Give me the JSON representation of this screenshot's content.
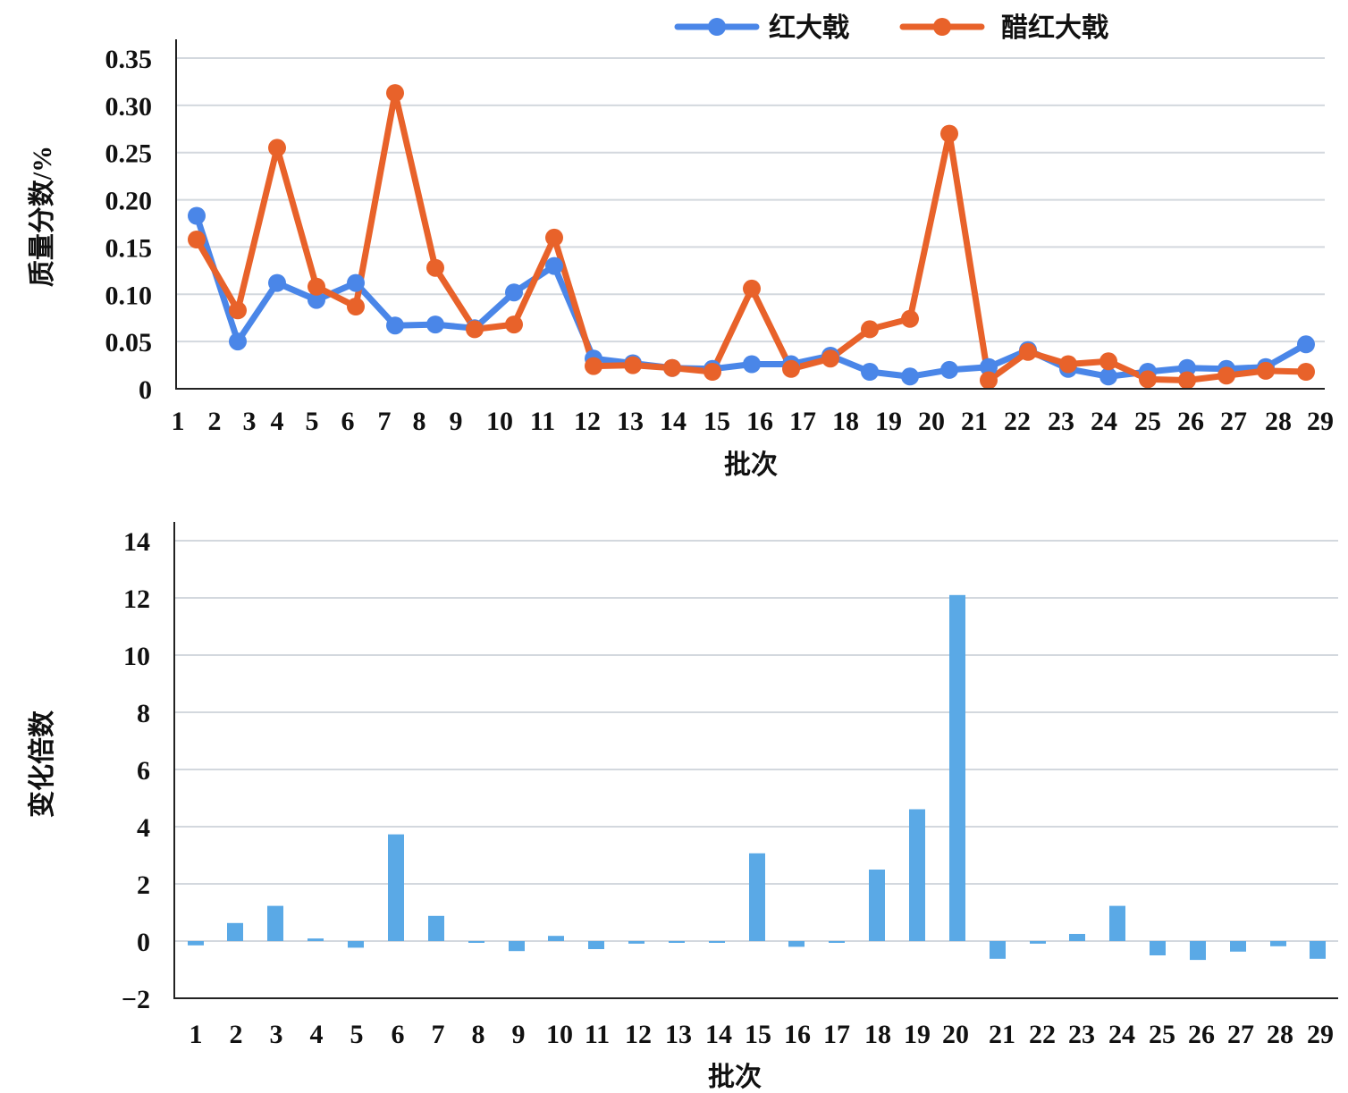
{
  "colors": {
    "red_jujube": "#4a86e8",
    "vinegar_red_jujube": "#e8622a",
    "fold_change_bar": "#5aa9e6",
    "grid": "#d3d8de",
    "axis": "#222222"
  },
  "chart_data": [
    {
      "type": "line",
      "title": "",
      "xlabel": "批次",
      "ylabel": "质量分数/%",
      "ylim": [
        0,
        0.35
      ],
      "yticks": [
        "0",
        "0.05",
        "0.10",
        "0.15",
        "0.20",
        "0.25",
        "0.30",
        "0.35"
      ],
      "grid": true,
      "legend_position": "top",
      "x": [
        1,
        2,
        3,
        4,
        5,
        6,
        7,
        8,
        9,
        10,
        11,
        12,
        13,
        14,
        15,
        16,
        17,
        18,
        19,
        20,
        21,
        22,
        23,
        24,
        25,
        26,
        27,
        28,
        29
      ],
      "series": [
        {
          "name": "红大戟",
          "color": "#4a86e8",
          "values": [
            0.183,
            0.05,
            0.112,
            0.094,
            0.112,
            0.067,
            0.068,
            0.064,
            0.102,
            0.13,
            0.032,
            0.027,
            0.022,
            0.021,
            0.026,
            0.026,
            0.035,
            0.018,
            0.013,
            0.02,
            0.023,
            0.041,
            0.021,
            0.013,
            0.018,
            0.022,
            0.021,
            0.023,
            0.047
          ]
        },
        {
          "name": "醋红大戟",
          "color": "#e8622a",
          "values": [
            0.158,
            0.083,
            0.255,
            0.108,
            0.087,
            0.313,
            0.128,
            0.063,
            0.068,
            0.16,
            0.024,
            0.025,
            0.022,
            0.018,
            0.106,
            0.021,
            0.032,
            0.063,
            0.074,
            0.27,
            0.009,
            0.039,
            0.026,
            0.029,
            0.01,
            0.009,
            0.014,
            0.019,
            0.018
          ]
        }
      ]
    },
    {
      "type": "bar",
      "title": "",
      "xlabel": "批次",
      "ylabel": "变化倍数",
      "ylim": [
        -2,
        14
      ],
      "yticks": [
        "−2",
        "0",
        "2",
        "4",
        "6",
        "8",
        "10",
        "12",
        "14"
      ],
      "grid": true,
      "categories": [
        "1",
        "2",
        "3",
        "4",
        "5",
        "6",
        "7",
        "8",
        "9",
        "10",
        "11",
        "12",
        "13",
        "14",
        "15",
        "16",
        "17",
        "18",
        "19",
        "20",
        "21",
        "22",
        "23",
        "24",
        "25",
        "26",
        "27",
        "28",
        "29"
      ],
      "values": [
        -0.15,
        0.63,
        1.23,
        0.09,
        -0.23,
        3.73,
        0.88,
        -0.05,
        -0.35,
        0.18,
        -0.28,
        -0.09,
        -0.06,
        -0.06,
        3.07,
        -0.2,
        -0.06,
        2.5,
        4.61,
        12.1,
        -0.62,
        -0.09,
        0.25,
        1.23,
        -0.5,
        -0.66,
        -0.37,
        -0.18,
        -0.62
      ]
    }
  ]
}
